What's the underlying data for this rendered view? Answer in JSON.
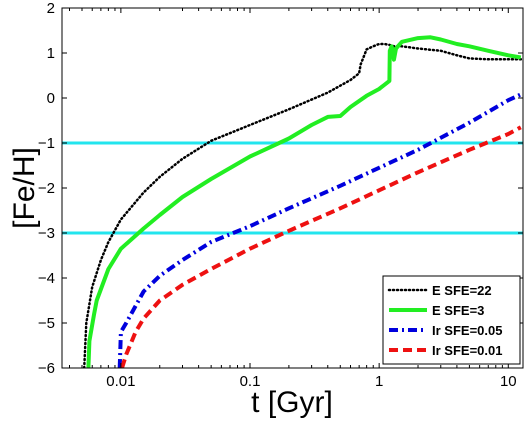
{
  "chart_data": {
    "type": "line",
    "xlabel": "t [Gyr]",
    "ylabel": "[Fe/H]",
    "xscale": "log",
    "xlim": [
      0.0035,
      13
    ],
    "ylim": [
      -6,
      2
    ],
    "x_ticks": [
      {
        "value": 0.01,
        "label": "0.01"
      },
      {
        "value": 0.1,
        "label": "0.1"
      },
      {
        "value": 1,
        "label": "1"
      },
      {
        "value": 10,
        "label": "10"
      }
    ],
    "y_ticks": [
      {
        "value": -6,
        "label": "−6"
      },
      {
        "value": -5,
        "label": "−5"
      },
      {
        "value": -4,
        "label": "−4"
      },
      {
        "value": -3,
        "label": "−3"
      },
      {
        "value": -2,
        "label": "−2"
      },
      {
        "value": -1,
        "label": "−1"
      },
      {
        "value": 0,
        "label": "0"
      },
      {
        "value": 1,
        "label": "1"
      },
      {
        "value": 2,
        "label": "2"
      }
    ],
    "grid": false,
    "legend_position": "bottom-right",
    "reference_lines": [
      {
        "y": -1,
        "color": "#22e5ee"
      },
      {
        "y": -3,
        "color": "#22e5ee"
      }
    ],
    "series": [
      {
        "name": "E SFE=22",
        "color": "#000000",
        "style": "dotted",
        "points": [
          [
            0.0052,
            -6.0
          ],
          [
            0.0054,
            -5.0
          ],
          [
            0.006,
            -4.2
          ],
          [
            0.007,
            -3.6
          ],
          [
            0.008,
            -3.2
          ],
          [
            0.01,
            -2.7
          ],
          [
            0.015,
            -2.1
          ],
          [
            0.02,
            -1.75
          ],
          [
            0.03,
            -1.35
          ],
          [
            0.05,
            -0.95
          ],
          [
            0.1,
            -0.6
          ],
          [
            0.2,
            -0.25
          ],
          [
            0.4,
            0.12
          ],
          [
            0.6,
            0.4
          ],
          [
            0.7,
            0.55
          ],
          [
            0.72,
            0.75
          ],
          [
            0.8,
            1.08
          ],
          [
            0.9,
            1.15
          ],
          [
            1.0,
            1.2
          ],
          [
            1.1,
            1.2
          ],
          [
            1.2,
            1.18
          ],
          [
            1.3,
            1.15
          ],
          [
            1.5,
            1.15
          ],
          [
            2.0,
            1.1
          ],
          [
            3.0,
            1.05
          ],
          [
            4.0,
            0.95
          ],
          [
            5.0,
            0.88
          ],
          [
            7.0,
            0.86
          ],
          [
            10.0,
            0.86
          ],
          [
            12.5,
            0.86
          ]
        ]
      },
      {
        "name": "E SFE=3",
        "color": "#22ee22",
        "style": "solid",
        "points": [
          [
            0.0056,
            -6.0
          ],
          [
            0.0057,
            -5.4
          ],
          [
            0.0062,
            -4.8
          ],
          [
            0.0065,
            -4.5
          ],
          [
            0.008,
            -3.8
          ],
          [
            0.01,
            -3.35
          ],
          [
            0.015,
            -2.9
          ],
          [
            0.02,
            -2.6
          ],
          [
            0.03,
            -2.2
          ],
          [
            0.05,
            -1.8
          ],
          [
            0.1,
            -1.3
          ],
          [
            0.2,
            -0.9
          ],
          [
            0.3,
            -0.6
          ],
          [
            0.4,
            -0.42
          ],
          [
            0.5,
            -0.4
          ],
          [
            0.6,
            -0.2
          ],
          [
            0.8,
            0.05
          ],
          [
            1.0,
            0.2
          ],
          [
            1.2,
            0.38
          ],
          [
            1.21,
            1.05
          ],
          [
            1.25,
            1.15
          ],
          [
            1.3,
            0.85
          ],
          [
            1.35,
            1.1
          ],
          [
            1.5,
            1.25
          ],
          [
            2.0,
            1.33
          ],
          [
            2.5,
            1.35
          ],
          [
            3.0,
            1.3
          ],
          [
            4.0,
            1.2
          ],
          [
            5.0,
            1.15
          ],
          [
            7.0,
            1.05
          ],
          [
            10.0,
            0.95
          ],
          [
            12.5,
            0.9
          ]
        ]
      },
      {
        "name": "Ir SFE=0.05",
        "color": "#0000dd",
        "style": "dashdot",
        "points": [
          [
            0.0098,
            -6.0
          ],
          [
            0.01,
            -5.2
          ],
          [
            0.011,
            -5.0
          ],
          [
            0.015,
            -4.3
          ],
          [
            0.02,
            -3.95
          ],
          [
            0.03,
            -3.6
          ],
          [
            0.05,
            -3.2
          ],
          [
            0.1,
            -2.85
          ],
          [
            0.2,
            -2.45
          ],
          [
            0.5,
            -1.95
          ],
          [
            1.0,
            -1.55
          ],
          [
            2.0,
            -1.15
          ],
          [
            5.0,
            -0.55
          ],
          [
            10.0,
            -0.05
          ],
          [
            12.5,
            0.08
          ]
        ]
      },
      {
        "name": "Ir SFE=0.01",
        "color": "#ee1111",
        "style": "dashed",
        "points": [
          [
            0.0102,
            -6.0
          ],
          [
            0.011,
            -5.7
          ],
          [
            0.013,
            -5.2
          ],
          [
            0.015,
            -4.9
          ],
          [
            0.02,
            -4.5
          ],
          [
            0.03,
            -4.15
          ],
          [
            0.05,
            -3.8
          ],
          [
            0.1,
            -3.35
          ],
          [
            0.2,
            -2.95
          ],
          [
            0.5,
            -2.45
          ],
          [
            1.0,
            -2.05
          ],
          [
            2.0,
            -1.65
          ],
          [
            5.0,
            -1.15
          ],
          [
            10.0,
            -0.8
          ],
          [
            12.5,
            -0.65
          ]
        ]
      }
    ]
  }
}
